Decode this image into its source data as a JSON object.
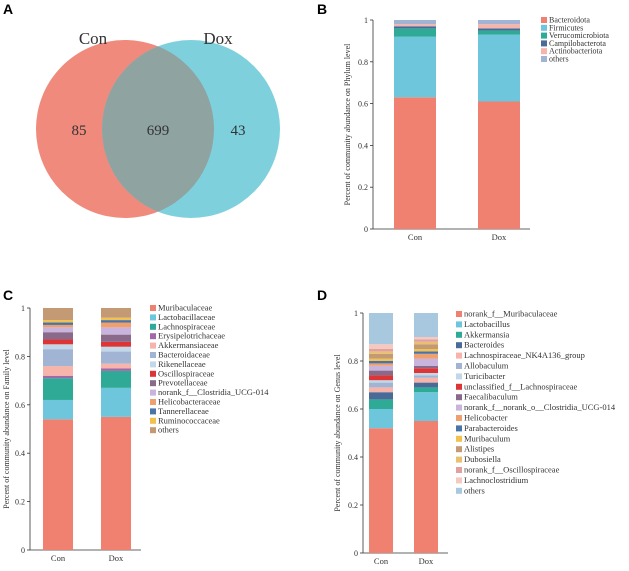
{
  "panels": {
    "A": "A",
    "B": "B",
    "C": "C",
    "D": "D"
  },
  "venn": {
    "left_label": "Con",
    "right_label": "Dox",
    "left_only": 85,
    "shared": 699,
    "right_only": 43,
    "left_color": "#f08a7c",
    "right_color": "#7fd0dd",
    "overlap_color": "#8fa3a1"
  },
  "chart_data": [
    {
      "panel": "B",
      "type": "bar",
      "stacked": true,
      "categories": [
        "Con",
        "Dox"
      ],
      "ylabel": "Percent of community abundance on Phylum level",
      "ylim": [
        0,
        1
      ],
      "yticks": [
        "0",
        "0.2",
        "0.4",
        "0.6",
        "0.8",
        "1"
      ],
      "legend_position": "top-right",
      "series": [
        {
          "name": "Bacteroidota",
          "color": "#f08070",
          "values": [
            0.63,
            0.61
          ]
        },
        {
          "name": "Firmicutes",
          "color": "#6ec6dc",
          "values": [
            0.29,
            0.32
          ]
        },
        {
          "name": "Verrucomicrobiota",
          "color": "#2eaa96",
          "values": [
            0.04,
            0.02
          ]
        },
        {
          "name": "Campilobacterota",
          "color": "#4a6a98",
          "values": [
            0.01,
            0.01
          ]
        },
        {
          "name": "Actinobacteriota",
          "color": "#f7b4aa",
          "values": [
            0.01,
            0.02
          ]
        },
        {
          "name": "others",
          "color": "#a2b4d4",
          "values": [
            0.02,
            0.02
          ]
        }
      ]
    },
    {
      "panel": "C",
      "type": "bar",
      "stacked": true,
      "categories": [
        "Con",
        "Dox"
      ],
      "ylabel": "Percent of community abundance on Family level",
      "ylim": [
        0,
        1
      ],
      "yticks": [
        "0",
        "0.2",
        "0.4",
        "0.6",
        "0.8",
        "1"
      ],
      "legend_position": "top-right",
      "series": [
        {
          "name": "Muribaculaceae",
          "color": "#f08070",
          "values": [
            0.54,
            0.55
          ]
        },
        {
          "name": "Lactobacillaceae",
          "color": "#6ec6dc",
          "values": [
            0.08,
            0.12
          ]
        },
        {
          "name": "Lachnospiraceae",
          "color": "#2eaa96",
          "values": [
            0.09,
            0.07
          ]
        },
        {
          "name": "Erysipelotrichaceae",
          "color": "#a06aa8",
          "values": [
            0.01,
            0.01
          ]
        },
        {
          "name": "Akkermansiaceae",
          "color": "#f7b4aa",
          "values": [
            0.04,
            0.02
          ]
        },
        {
          "name": "Bacteroidaceae",
          "color": "#a2b4d4",
          "values": [
            0.07,
            0.05
          ]
        },
        {
          "name": "Rikenellaceae",
          "color": "#c2d8e8",
          "values": [
            0.02,
            0.02
          ]
        },
        {
          "name": "Oscillospiraceae",
          "color": "#dd3535",
          "values": [
            0.02,
            0.02
          ]
        },
        {
          "name": "Prevotellaceae",
          "color": "#8a6a8a",
          "values": [
            0.03,
            0.03
          ]
        },
        {
          "name": "norank_f__Clostridia_UCG-014",
          "color": "#c8b4dc",
          "values": [
            0.02,
            0.03
          ]
        },
        {
          "name": "Helicobacteraceae",
          "color": "#f0a06e",
          "values": [
            0.01,
            0.02
          ]
        },
        {
          "name": "Tannerellaceae",
          "color": "#4a74a8",
          "values": [
            0.01,
            0.01
          ]
        },
        {
          "name": "Ruminococcaceae",
          "color": "#f2c14e",
          "values": [
            0.01,
            0.01
          ]
        },
        {
          "name": "others",
          "color": "#c49a74",
          "values": [
            0.05,
            0.04
          ]
        }
      ]
    },
    {
      "panel": "D",
      "type": "bar",
      "stacked": true,
      "categories": [
        "Con",
        "Dox"
      ],
      "ylabel": "Percent of community abundance on Genus level",
      "ylim": [
        0,
        1
      ],
      "yticks": [
        "0",
        "0.2",
        "0.4",
        "0.6",
        "0.8",
        "1"
      ],
      "legend_position": "top-right",
      "series": [
        {
          "name": "norank_f__Muribaculaceae",
          "color": "#f08070",
          "values": [
            0.52,
            0.55
          ]
        },
        {
          "name": "Lactobacillus",
          "color": "#6ec6dc",
          "values": [
            0.08,
            0.12
          ]
        },
        {
          "name": "Akkermansia",
          "color": "#2eaa96",
          "values": [
            0.04,
            0.02
          ]
        },
        {
          "name": "Bacteroides",
          "color": "#4a6a98",
          "values": [
            0.03,
            0.02
          ]
        },
        {
          "name": "Lachnospiraceae_NK4A136_group",
          "color": "#f7b4aa",
          "values": [
            0.02,
            0.02
          ]
        },
        {
          "name": "Allobaculum",
          "color": "#a2b4d4",
          "values": [
            0.02,
            0.01
          ]
        },
        {
          "name": "Turicibacter",
          "color": "#c2d8e8",
          "values": [
            0.01,
            0.01
          ]
        },
        {
          "name": "unclassified_f__Lachnospiraceae",
          "color": "#dd3535",
          "values": [
            0.02,
            0.02
          ]
        },
        {
          "name": "Faecalibaculum",
          "color": "#8a6a8a",
          "values": [
            0.02,
            0.01
          ]
        },
        {
          "name": "norank_f__norank_o__Clostridia_UCG-014",
          "color": "#c8b4dc",
          "values": [
            0.02,
            0.03
          ]
        },
        {
          "name": "Helicobacter",
          "color": "#f0a06e",
          "values": [
            0.01,
            0.02
          ]
        },
        {
          "name": "Parabacteroides",
          "color": "#4a74a8",
          "values": [
            0.01,
            0.01
          ]
        },
        {
          "name": "Muribaculum",
          "color": "#f2c14e",
          "values": [
            0.01,
            0.01
          ]
        },
        {
          "name": "Alistipes",
          "color": "#c49a74",
          "values": [
            0.02,
            0.02
          ]
        },
        {
          "name": "Dubosiella",
          "color": "#e8c070",
          "values": [
            0.01,
            0.01
          ]
        },
        {
          "name": "norank_f__Oscillospiraceae",
          "color": "#e0a0a0",
          "values": [
            0.01,
            0.01
          ]
        },
        {
          "name": "Lachnoclostridium",
          "color": "#f5c8c0",
          "values": [
            0.02,
            0.01
          ]
        },
        {
          "name": "others",
          "color": "#a8c8e0",
          "values": [
            0.13,
            0.1
          ]
        }
      ]
    }
  ]
}
